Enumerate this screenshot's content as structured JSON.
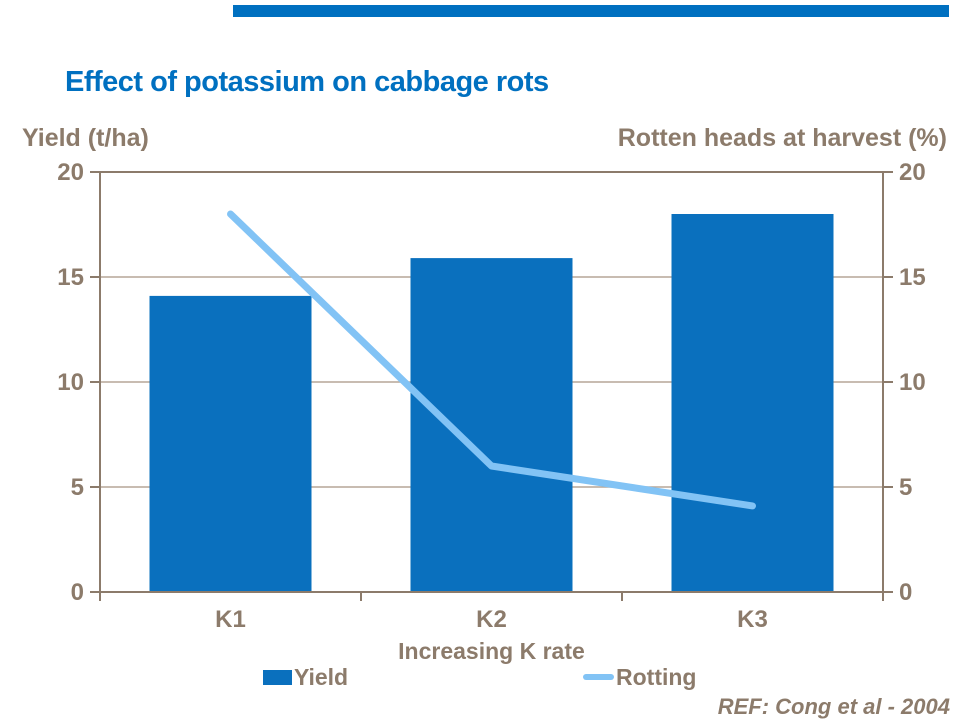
{
  "slide": {
    "title": "Effect of potassium on cabbage rots",
    "ref": "REF: Cong et al - 2004",
    "accent_color": "#0070C0"
  },
  "chart_data": {
    "type": "bar+line combo",
    "categories": [
      "K1",
      "K2",
      "K3"
    ],
    "series": [
      {
        "name": "Yield",
        "type": "bar",
        "axis": "left",
        "values": [
          14.1,
          15.9,
          18.0
        ],
        "color": "#0A70BE"
      },
      {
        "name": "Rotting",
        "type": "line",
        "axis": "right",
        "values": [
          18.0,
          6.0,
          4.1
        ],
        "color": "#82C3F5"
      }
    ],
    "left_axis": {
      "title": "Yield (t/ha)",
      "min": 0,
      "max": 20,
      "ticks": [
        0,
        5,
        10,
        15,
        20
      ]
    },
    "right_axis": {
      "title": "Rotten heads at harvest (%)",
      "min": 0,
      "max": 20,
      "ticks": [
        0,
        5,
        10,
        15,
        20
      ]
    },
    "xlabel": "Increasing K rate",
    "legend": [
      {
        "label": "Yield",
        "swatch": "bar"
      },
      {
        "label": "Rotting",
        "swatch": "line"
      }
    ],
    "legend_position": "bottom",
    "grid": true,
    "axis_color": "#8C7B6B",
    "grid_color": "#B5A697"
  }
}
